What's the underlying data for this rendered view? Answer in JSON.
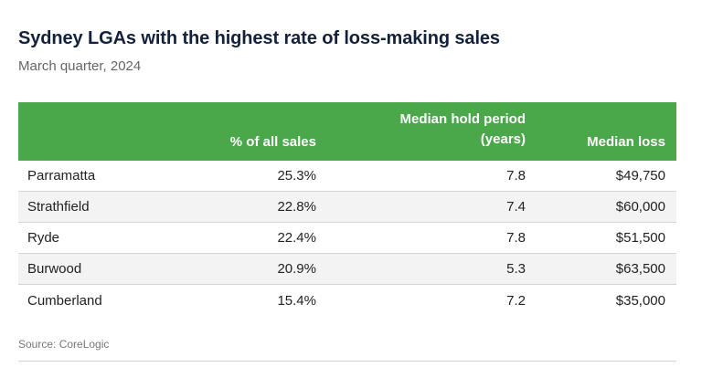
{
  "title": "Sydney LGAs with the highest rate of loss-making sales",
  "subtitle": "March quarter, 2024",
  "source": "Source: CoreLogic",
  "colors": {
    "header_bg": "#4aa84a",
    "title": "#14213d"
  },
  "chart_data": {
    "type": "table",
    "columns": [
      "",
      "% of all sales",
      "Median hold period (years)",
      "Median loss"
    ],
    "header_lines": {
      "col1": "% of all sales",
      "col2_line1": "Median hold period",
      "col2_line2": "(years)",
      "col3": "Median loss"
    },
    "rows": [
      {
        "lga": "Parramatta",
        "pct": "25.3%",
        "hold": "7.8",
        "loss": "$49,750"
      },
      {
        "lga": "Strathfield",
        "pct": "22.8%",
        "hold": "7.4",
        "loss": "$60,000"
      },
      {
        "lga": "Ryde",
        "pct": "22.4%",
        "hold": "7.8",
        "loss": "$51,500"
      },
      {
        "lga": "Burwood",
        "pct": "20.9%",
        "hold": "5.3",
        "loss": "$63,500"
      },
      {
        "lga": "Cumberland",
        "pct": "15.4%",
        "hold": "7.2",
        "loss": "$35,000"
      }
    ]
  }
}
